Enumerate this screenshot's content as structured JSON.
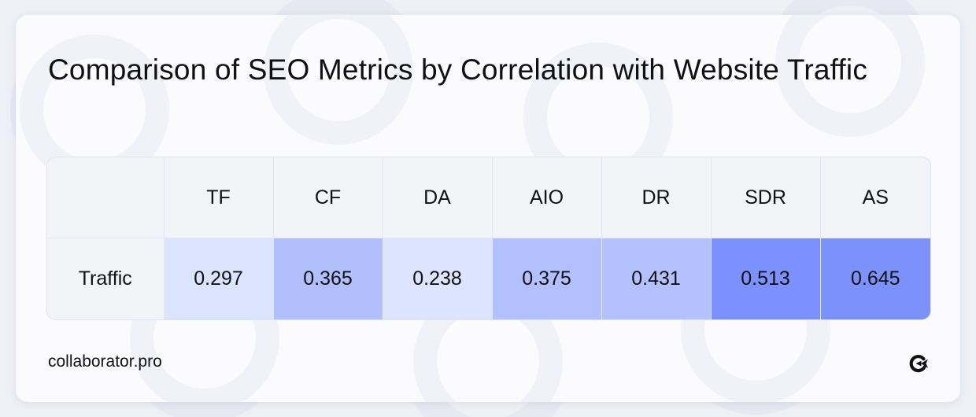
{
  "title": "Comparison of SEO Metrics by Correlation with Website Traffic",
  "footer": {
    "brand": "collaborator.pro",
    "logo_icon": "collaborator-logo-icon"
  },
  "colors": {
    "background": "#eef0f6",
    "card": "#fbfbfd",
    "header_cell": "#f3f4f8",
    "scale_low": "#dde4fd",
    "scale_high": "#7b92fd"
  },
  "chart_data": {
    "type": "table",
    "title": "Comparison of SEO Metrics by Correlation with Website Traffic",
    "columns": [
      "TF",
      "CF",
      "DA",
      "AIO",
      "DR",
      "SDR",
      "AS"
    ],
    "rows": [
      {
        "label": "Traffic",
        "values": [
          0.297,
          0.365,
          0.238,
          0.375,
          0.431,
          0.513,
          0.645
        ]
      }
    ],
    "value_labels": [
      "0.297",
      "0.365",
      "0.238",
      "0.375",
      "0.431",
      "0.513",
      "0.645"
    ],
    "cell_colors": [
      "#dbe4fd",
      "#b1c0fd",
      "#dde4fd",
      "#b2c1fd",
      "#b3c2fd",
      "#7b91fd",
      "#7b92fd"
    ]
  }
}
